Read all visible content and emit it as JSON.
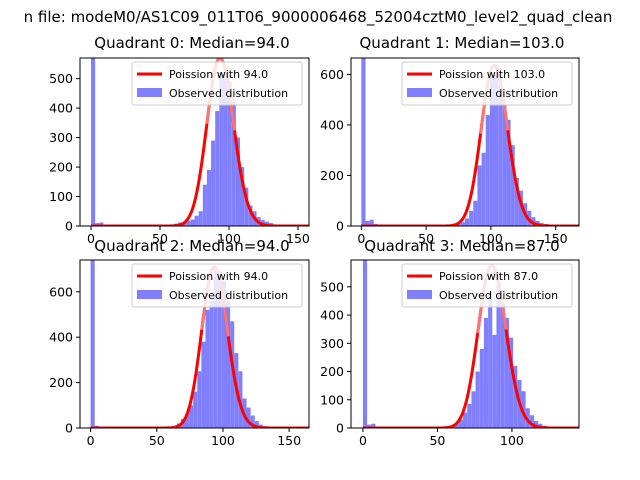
{
  "suptitle": "n file: modeM0/AS1C09_011T06_9000006468_52004cztM0_level2_quad_clean",
  "colors": {
    "bar": "#8080ff",
    "curve": "#ff0000",
    "curve_peak": "#ff8080"
  },
  "chart_data": [
    {
      "type": "bar",
      "title": "Quadrant 0: Median=94.0",
      "xlim": [
        -8,
        158
      ],
      "ylim": [
        0,
        570
      ],
      "xticks": [
        0,
        50,
        100,
        150
      ],
      "yticks": [
        0,
        100,
        200,
        300,
        400,
        500
      ],
      "bin_width": 3,
      "bars": [
        [
          0,
          570
        ],
        [
          3,
          10
        ],
        [
          6,
          12
        ],
        [
          9,
          5
        ],
        [
          12,
          3
        ],
        [
          15,
          2
        ],
        [
          18,
          1
        ],
        [
          21,
          1
        ],
        [
          24,
          1
        ],
        [
          27,
          1
        ],
        [
          30,
          1
        ],
        [
          33,
          1
        ],
        [
          36,
          1
        ],
        [
          39,
          1
        ],
        [
          42,
          1
        ],
        [
          45,
          2
        ],
        [
          48,
          2
        ],
        [
          51,
          2
        ],
        [
          54,
          3
        ],
        [
          57,
          3
        ],
        [
          60,
          8
        ],
        [
          63,
          12
        ],
        [
          66,
          10
        ],
        [
          69,
          18
        ],
        [
          72,
          22
        ],
        [
          75,
          35
        ],
        [
          78,
          50
        ],
        [
          81,
          140
        ],
        [
          84,
          190
        ],
        [
          87,
          290
        ],
        [
          90,
          390
        ],
        [
          93,
          520
        ],
        [
          96,
          520
        ],
        [
          99,
          490
        ],
        [
          102,
          420
        ],
        [
          105,
          300
        ],
        [
          108,
          200
        ],
        [
          111,
          130
        ],
        [
          114,
          70
        ],
        [
          117,
          50
        ],
        [
          120,
          30
        ],
        [
          123,
          20
        ],
        [
          126,
          15
        ],
        [
          129,
          10
        ],
        [
          132,
          5
        ],
        [
          135,
          3
        ],
        [
          138,
          2
        ],
        [
          141,
          1
        ],
        [
          144,
          1
        ],
        [
          147,
          1
        ],
        [
          150,
          1
        ]
      ],
      "poisson_lambda": 94.0,
      "poisson_scale": 570,
      "legend": [
        "Poission with 94.0",
        "Observed distribution"
      ]
    },
    {
      "type": "bar",
      "title": "Quadrant 1: Median=103.0",
      "xlim": [
        -8,
        168
      ],
      "ylim": [
        0,
        665
      ],
      "xticks": [
        0,
        50,
        100,
        150
      ],
      "yticks": [
        0,
        200,
        400,
        600
      ],
      "bin_width": 3.2,
      "bars": [
        [
          0,
          665
        ],
        [
          3.2,
          20
        ],
        [
          6.4,
          25
        ],
        [
          9.6,
          8
        ],
        [
          12.8,
          4
        ],
        [
          16,
          2
        ],
        [
          19.2,
          1
        ],
        [
          22.4,
          1
        ],
        [
          25.6,
          1
        ],
        [
          28.8,
          1
        ],
        [
          32,
          1
        ],
        [
          35.2,
          1
        ],
        [
          38.4,
          1
        ],
        [
          41.6,
          1
        ],
        [
          44.8,
          1
        ],
        [
          48,
          1
        ],
        [
          51.2,
          1
        ],
        [
          54.4,
          2
        ],
        [
          57.6,
          2
        ],
        [
          60.8,
          2
        ],
        [
          64,
          3
        ],
        [
          67.2,
          4
        ],
        [
          70.4,
          5
        ],
        [
          73.6,
          8
        ],
        [
          76.8,
          15
        ],
        [
          80,
          30
        ],
        [
          83.2,
          60
        ],
        [
          86.4,
          100
        ],
        [
          89.6,
          240
        ],
        [
          92.8,
          290
        ],
        [
          96,
          440
        ],
        [
          99.2,
          590
        ],
        [
          102.4,
          600
        ],
        [
          105.6,
          560
        ],
        [
          108.8,
          480
        ],
        [
          112,
          420
        ],
        [
          115.2,
          320
        ],
        [
          118.4,
          190
        ],
        [
          121.6,
          140
        ],
        [
          124.8,
          90
        ],
        [
          128,
          60
        ],
        [
          131.2,
          35
        ],
        [
          134.4,
          20
        ],
        [
          137.6,
          12
        ],
        [
          140.8,
          8
        ],
        [
          144,
          4
        ],
        [
          147.2,
          3
        ],
        [
          150.4,
          2
        ],
        [
          153.6,
          1
        ],
        [
          156.8,
          1
        ]
      ],
      "poisson_lambda": 103.0,
      "poisson_scale": 635,
      "legend": [
        "Poission with 103.0",
        "Observed distribution"
      ]
    },
    {
      "type": "bar",
      "title": "Quadrant 2: Median=94.0",
      "xlim": [
        -8,
        165
      ],
      "ylim": [
        0,
        740
      ],
      "xticks": [
        0,
        50,
        100,
        150
      ],
      "yticks": [
        0,
        200,
        400,
        600
      ],
      "bin_width": 3.1,
      "bars": [
        [
          0,
          740
        ],
        [
          3.1,
          10
        ],
        [
          6.2,
          4
        ],
        [
          9.3,
          2
        ],
        [
          12.4,
          1
        ],
        [
          15.5,
          1
        ],
        [
          18.6,
          1
        ],
        [
          21.7,
          1
        ],
        [
          24.8,
          1
        ],
        [
          27.9,
          1
        ],
        [
          31,
          1
        ],
        [
          34.1,
          1
        ],
        [
          37.2,
          1
        ],
        [
          40.3,
          1
        ],
        [
          43.4,
          1
        ],
        [
          46.5,
          1
        ],
        [
          49.6,
          1
        ],
        [
          52.7,
          2
        ],
        [
          55.8,
          3
        ],
        [
          58.9,
          4
        ],
        [
          62,
          8
        ],
        [
          65.1,
          20
        ],
        [
          68.2,
          40
        ],
        [
          71.3,
          60
        ],
        [
          74.4,
          100
        ],
        [
          77.5,
          160
        ],
        [
          80.6,
          250
        ],
        [
          83.7,
          380
        ],
        [
          86.8,
          520
        ],
        [
          89.9,
          560
        ],
        [
          93,
          700
        ],
        [
          96.1,
          690
        ],
        [
          99.2,
          650
        ],
        [
          102.3,
          560
        ],
        [
          105.4,
          470
        ],
        [
          108.5,
          330
        ],
        [
          111.6,
          250
        ],
        [
          114.7,
          130
        ],
        [
          117.8,
          90
        ],
        [
          120.9,
          55
        ],
        [
          124,
          30
        ],
        [
          127.1,
          15
        ],
        [
          130.2,
          8
        ],
        [
          133.3,
          4
        ],
        [
          136.4,
          2
        ],
        [
          139.5,
          1
        ]
      ],
      "poisson_lambda": 94.0,
      "poisson_scale": 710,
      "legend": [
        "Poission with 94.0",
        "Observed distribution"
      ]
    },
    {
      "type": "bar",
      "title": "Quadrant 3: Median=87.0",
      "xlim": [
        -8,
        145
      ],
      "ylim": [
        0,
        595
      ],
      "xticks": [
        0,
        50,
        100
      ],
      "yticks": [
        0,
        100,
        200,
        300,
        400,
        500
      ],
      "bin_width": 2.8,
      "bars": [
        [
          0,
          595
        ],
        [
          2.8,
          12
        ],
        [
          5.6,
          15
        ],
        [
          8.4,
          5
        ],
        [
          11.2,
          2
        ],
        [
          14,
          1
        ],
        [
          16.8,
          1
        ],
        [
          19.6,
          1
        ],
        [
          22.4,
          1
        ],
        [
          25.2,
          1
        ],
        [
          28,
          1
        ],
        [
          30.8,
          1
        ],
        [
          33.6,
          1
        ],
        [
          36.4,
          1
        ],
        [
          39.2,
          1
        ],
        [
          42,
          1
        ],
        [
          44.8,
          1
        ],
        [
          47.6,
          1
        ],
        [
          50.4,
          2
        ],
        [
          53.2,
          3
        ],
        [
          56,
          5
        ],
        [
          58.8,
          8
        ],
        [
          61.6,
          15
        ],
        [
          64.4,
          30
        ],
        [
          67.2,
          55
        ],
        [
          70,
          85
        ],
        [
          72.8,
          130
        ],
        [
          75.6,
          200
        ],
        [
          78.4,
          280
        ],
        [
          81.2,
          390
        ],
        [
          84,
          480
        ],
        [
          86.8,
          330
        ],
        [
          89.6,
          510
        ],
        [
          92.4,
          440
        ],
        [
          95.2,
          390
        ],
        [
          98,
          320
        ],
        [
          100.8,
          220
        ],
        [
          103.6,
          170
        ],
        [
          106.4,
          130
        ],
        [
          109.2,
          70
        ],
        [
          112,
          45
        ],
        [
          114.8,
          25
        ],
        [
          117.6,
          15
        ],
        [
          120.4,
          8
        ],
        [
          123.2,
          4
        ],
        [
          126,
          2
        ],
        [
          128.8,
          1
        ],
        [
          131.6,
          1
        ]
      ],
      "poisson_lambda": 87.0,
      "poisson_scale": 575,
      "legend": [
        "Poission with 87.0",
        "Observed distribution"
      ]
    }
  ]
}
